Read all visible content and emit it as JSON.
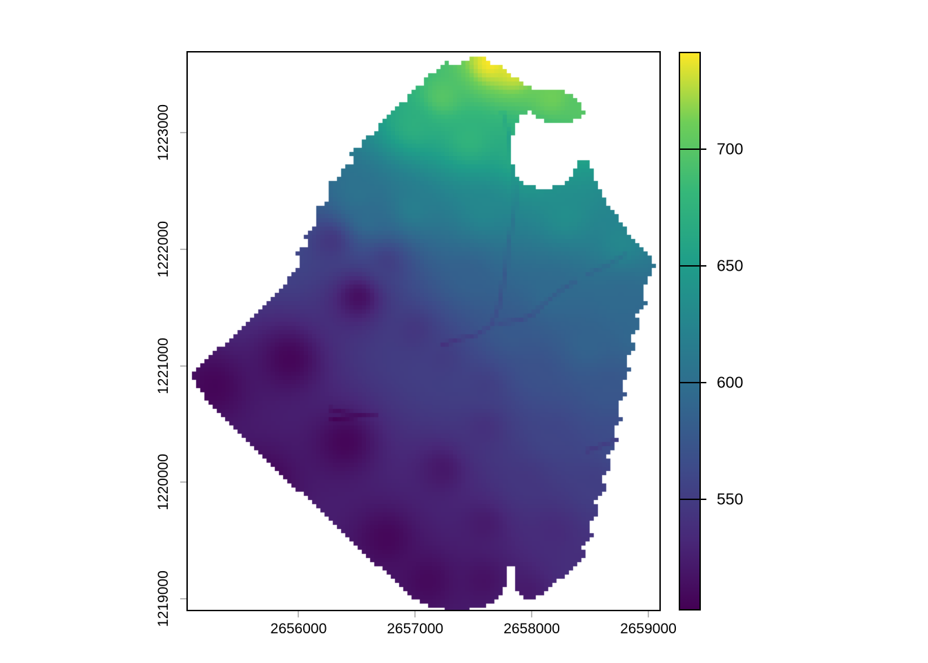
{
  "figure": {
    "background": "#ffffff",
    "description": "Raster elevation map plotted with axes and viridis legend"
  },
  "chart_data": {
    "type": "heatmap",
    "subtype": "raster-elevation-map",
    "title": "",
    "xlabel": "",
    "ylabel": "",
    "x_axis": {
      "range": [
        2655050,
        2659095
      ],
      "ticks": [
        2656000,
        2657000,
        2658000,
        2659000
      ]
    },
    "y_axis": {
      "range": [
        1218905,
        1223690
      ],
      "ticks": [
        1219000,
        1220000,
        1221000,
        1222000,
        1223000
      ]
    },
    "legend": {
      "range": [
        503,
        741
      ],
      "ticks": [
        550,
        600,
        650,
        700
      ],
      "colormap": "viridis",
      "position": "right"
    },
    "viridis_stops": [
      [
        0.0,
        "#440154"
      ],
      [
        0.125,
        "#482878"
      ],
      [
        0.25,
        "#3e4a89"
      ],
      [
        0.375,
        "#31688e"
      ],
      [
        0.5,
        "#26828e"
      ],
      [
        0.625,
        "#1f9e89"
      ],
      [
        0.75,
        "#35b779"
      ],
      [
        0.875,
        "#6ece58"
      ],
      [
        1.0,
        "#fde725"
      ]
    ],
    "boundary": [
      [
        2657580,
        1223650
      ],
      [
        2657650,
        1223595
      ],
      [
        2657730,
        1223575
      ],
      [
        2657820,
        1223490
      ],
      [
        2657910,
        1223440
      ],
      [
        2658000,
        1223380
      ],
      [
        2658105,
        1223355
      ],
      [
        2658225,
        1223370
      ],
      [
        2658340,
        1223320
      ],
      [
        2658425,
        1223250
      ],
      [
        2658460,
        1223160
      ],
      [
        2658415,
        1223120
      ],
      [
        2658305,
        1223085
      ],
      [
        2658175,
        1223070
      ],
      [
        2658070,
        1223120
      ],
      [
        2657975,
        1223180
      ],
      [
        2657890,
        1223140
      ],
      [
        2657850,
        1223040
      ],
      [
        2657820,
        1222895
      ],
      [
        2657830,
        1222745
      ],
      [
        2657880,
        1222610
      ],
      [
        2657970,
        1222550
      ],
      [
        2658090,
        1222525
      ],
      [
        2658235,
        1222540
      ],
      [
        2658330,
        1222610
      ],
      [
        2658390,
        1222705
      ],
      [
        2658415,
        1222785
      ],
      [
        2658485,
        1222750
      ],
      [
        2658535,
        1222645
      ],
      [
        2658580,
        1222525
      ],
      [
        2658605,
        1222450
      ],
      [
        2658700,
        1222330
      ],
      [
        2658770,
        1222230
      ],
      [
        2658840,
        1222120
      ],
      [
        2658920,
        1222035
      ],
      [
        2658995,
        1221955
      ],
      [
        2659055,
        1221875
      ],
      [
        2659005,
        1221735
      ],
      [
        2658950,
        1221650
      ],
      [
        2658985,
        1221530
      ],
      [
        2658900,
        1221435
      ],
      [
        2658935,
        1221340
      ],
      [
        2658855,
        1221245
      ],
      [
        2658890,
        1221145
      ],
      [
        2658810,
        1221055
      ],
      [
        2658845,
        1220950
      ],
      [
        2658770,
        1220850
      ],
      [
        2658805,
        1220745
      ],
      [
        2658730,
        1220650
      ],
      [
        2658770,
        1220550
      ],
      [
        2658700,
        1220450
      ],
      [
        2658735,
        1220345
      ],
      [
        2658650,
        1220235
      ],
      [
        2658685,
        1220135
      ],
      [
        2658605,
        1220035
      ],
      [
        2658640,
        1219940
      ],
      [
        2658545,
        1219840
      ],
      [
        2658585,
        1219740
      ],
      [
        2658490,
        1219645
      ],
      [
        2658525,
        1219545
      ],
      [
        2658430,
        1219455
      ],
      [
        2658460,
        1219365
      ],
      [
        2658355,
        1219275
      ],
      [
        2658265,
        1219185
      ],
      [
        2658165,
        1219110
      ],
      [
        2658070,
        1219025
      ],
      [
        2657975,
        1218980
      ],
      [
        2657890,
        1219035
      ],
      [
        2657855,
        1219145
      ],
      [
        2657840,
        1219275
      ],
      [
        2657805,
        1219275
      ],
      [
        2657785,
        1219120
      ],
      [
        2657740,
        1219025
      ],
      [
        2657645,
        1218960
      ],
      [
        2657535,
        1218915
      ],
      [
        2657415,
        1218900
      ],
      [
        2657285,
        1218900
      ],
      [
        2657170,
        1218920
      ],
      [
        2657060,
        1218970
      ],
      [
        2656975,
        1219005
      ],
      [
        2656635,
        1219325
      ],
      [
        2656280,
        1219660
      ],
      [
        2655925,
        1220000
      ],
      [
        2655570,
        1220345
      ],
      [
        2655270,
        1220630
      ],
      [
        2655075,
        1220905
      ],
      [
        2655210,
        1221045
      ],
      [
        2655450,
        1221275
      ],
      [
        2655685,
        1221500
      ],
      [
        2655895,
        1221720
      ],
      [
        2655970,
        1221815
      ],
      [
        2656020,
        1221885
      ],
      [
        2655985,
        1221970
      ],
      [
        2656080,
        1222040
      ],
      [
        2656040,
        1222125
      ],
      [
        2656130,
        1222180
      ],
      [
        2656175,
        1222270
      ],
      [
        2656135,
        1222340
      ],
      [
        2656230,
        1222400
      ],
      [
        2656280,
        1222480
      ],
      [
        2656245,
        1222550
      ],
      [
        2656340,
        1222620
      ],
      [
        2656380,
        1222700
      ],
      [
        2656470,
        1222750
      ],
      [
        2656440,
        1222830
      ],
      [
        2656530,
        1222890
      ],
      [
        2656585,
        1222970
      ],
      [
        2656675,
        1223020
      ],
      [
        2656710,
        1223105
      ],
      [
        2656795,
        1223150
      ],
      [
        2656835,
        1223235
      ],
      [
        2656930,
        1223280
      ],
      [
        2656975,
        1223360
      ],
      [
        2657060,
        1223410
      ],
      [
        2657110,
        1223490
      ],
      [
        2657195,
        1223540
      ],
      [
        2657275,
        1223605
      ],
      [
        2657370,
        1223580
      ],
      [
        2657455,
        1223640
      ]
    ],
    "elevation_control_points": [
      [
        2655270,
        1220820,
        506
      ],
      [
        2655925,
        1221055,
        506
      ],
      [
        2655685,
        1219990,
        505
      ],
      [
        2656400,
        1220345,
        506
      ],
      [
        2656755,
        1219515,
        507
      ],
      [
        2657110,
        1219155,
        509
      ],
      [
        2656515,
        1221590,
        512
      ],
      [
        2656990,
        1221290,
        545
      ],
      [
        2657230,
        1221055,
        550
      ],
      [
        2657585,
        1220820,
        552
      ],
      [
        2657645,
        1223605,
        742
      ],
      [
        2657850,
        1223545,
        738
      ],
      [
        2658175,
        1223310,
        712
      ],
      [
        2658415,
        1223200,
        700
      ],
      [
        2657230,
        1223310,
        700
      ],
      [
        2656990,
        1223070,
        672
      ],
      [
        2657465,
        1222955,
        678
      ],
      [
        2657940,
        1222835,
        670
      ],
      [
        2656515,
        1222480,
        605
      ],
      [
        2656990,
        1222360,
        618
      ],
      [
        2657585,
        1222360,
        628
      ],
      [
        2658295,
        1222300,
        635
      ],
      [
        2658770,
        1222065,
        628
      ],
      [
        2656280,
        1222065,
        545
      ],
      [
        2656595,
        1222280,
        598
      ],
      [
        2656755,
        1221885,
        552
      ],
      [
        2657465,
        1221765,
        585
      ],
      [
        2658175,
        1221650,
        595
      ],
      [
        2658770,
        1221590,
        595
      ],
      [
        2657820,
        1221290,
        578
      ],
      [
        2658475,
        1221175,
        588
      ],
      [
        2658890,
        1221290,
        592
      ],
      [
        2658060,
        1220935,
        570
      ],
      [
        2658650,
        1220820,
        575
      ],
      [
        2657585,
        1220460,
        540
      ],
      [
        2658175,
        1220405,
        558
      ],
      [
        2658770,
        1220345,
        565
      ],
      [
        2657230,
        1220105,
        520
      ],
      [
        2657940,
        1219990,
        545
      ],
      [
        2658530,
        1219990,
        552
      ],
      [
        2657585,
        1219630,
        522
      ],
      [
        2658175,
        1219575,
        535
      ],
      [
        2658415,
        1219275,
        538
      ],
      [
        2657585,
        1219155,
        515
      ],
      [
        2657940,
        1219040,
        522
      ]
    ],
    "streams": [
      [
        [
          2657230,
          1221175
        ],
        [
          2657345,
          1221220
        ],
        [
          2657525,
          1221265
        ],
        [
          2657655,
          1221350
        ],
        [
          2657715,
          1221500
        ],
        [
          2657750,
          1221680
        ],
        [
          2657780,
          1221855
        ],
        [
          2657795,
          1222035
        ],
        [
          2657835,
          1222210
        ],
        [
          2657860,
          1222390
        ],
        [
          2657860,
          1222565
        ],
        [
          2657835,
          1222715
        ],
        [
          2657820,
          1222860
        ],
        [
          2657800,
          1223010
        ],
        [
          2657750,
          1223180
        ]
      ],
      [
        [
          2658375,
          1221725
        ],
        [
          2658250,
          1221650
        ],
        [
          2658115,
          1221540
        ],
        [
          2658010,
          1221440
        ],
        [
          2657910,
          1221395
        ],
        [
          2657715,
          1221365
        ]
      ],
      [
        [
          2658800,
          1221955
        ],
        [
          2658640,
          1221855
        ],
        [
          2658485,
          1221790
        ]
      ],
      [
        [
          2656265,
          1220630
        ],
        [
          2656400,
          1220595
        ],
        [
          2656540,
          1220575
        ],
        [
          2656665,
          1220585
        ]
      ],
      [
        [
          2656285,
          1220540
        ],
        [
          2656430,
          1220555
        ],
        [
          2656540,
          1220575
        ]
      ],
      [
        [
          2658950,
          1220460
        ],
        [
          2658680,
          1220345
        ],
        [
          2658475,
          1220270
        ]
      ]
    ],
    "stream_depth_m": 14,
    "stream_halfwidth_m": 30
  }
}
